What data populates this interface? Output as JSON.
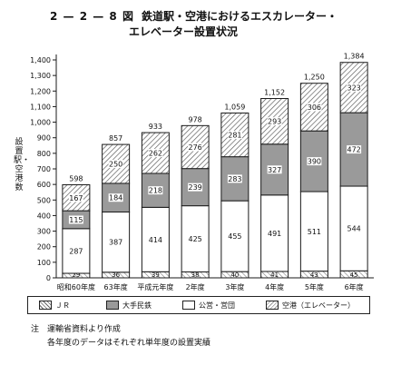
{
  "title": {
    "number": "2 — 2 — 8 図",
    "line1": "鉄道駅・空港におけるエスカレーター・",
    "line2": "エレベーター設置状況"
  },
  "ylabel": "設置駅・空港数",
  "notes": {
    "line1": "注　運輸省資料より作成",
    "line2": "各年度のデータはそれぞれ単年度の設置実績"
  },
  "colors": {
    "jr": "#ffffff",
    "private": "#9a9a9a",
    "public": "#ffffff",
    "airport": "#e6e6e6",
    "edge": "#1a1a1a"
  },
  "chart_data": {
    "type": "bar",
    "stacked": true,
    "categories": [
      "昭和60年度",
      "63年度",
      "平成元年度",
      "2年度",
      "3年度",
      "4年度",
      "5年度",
      "6年度"
    ],
    "series": [
      {
        "name": "空港（エレベーター）",
        "values": [
          29,
          36,
          39,
          38,
          40,
          41,
          43,
          45
        ]
      },
      {
        "name": "公営・営団",
        "values": [
          287,
          387,
          414,
          425,
          455,
          491,
          511,
          544
        ]
      },
      {
        "name": "大手民鉄",
        "values": [
          115,
          184,
          218,
          239,
          283,
          327,
          390,
          472
        ]
      },
      {
        "name": "ＪＲ",
        "values": [
          167,
          250,
          262,
          276,
          281,
          293,
          306,
          323
        ]
      }
    ],
    "totals": [
      598,
      857,
      933,
      978,
      1059,
      1152,
      1250,
      1384
    ],
    "yticks": [
      0,
      100,
      200,
      300,
      400,
      500,
      600,
      700,
      800,
      900,
      1000,
      1100,
      1200,
      1300,
      1400
    ],
    "ylim": [
      0,
      1400
    ],
    "legend": [
      "ＪＲ",
      "大手民鉄",
      "公営・営団",
      "空港（エレベーター）"
    ],
    "legend_position": "bottom"
  }
}
